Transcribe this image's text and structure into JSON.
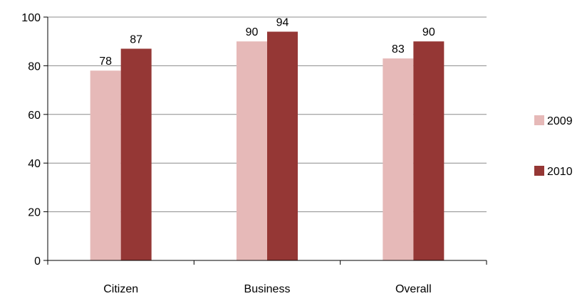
{
  "chart_data": {
    "type": "bar",
    "title": "",
    "xlabel": "",
    "ylabel": "",
    "categories": [
      "Citizen",
      "Business",
      "Overall"
    ],
    "series": [
      {
        "name": "2009",
        "values": [
          78,
          90,
          83
        ],
        "color": "#E6B9B8"
      },
      {
        "name": "2010",
        "values": [
          87,
          94,
          90
        ],
        "color": "#953735"
      }
    ],
    "ylim": [
      0,
      100
    ],
    "yticks": [
      0,
      20,
      40,
      60,
      80,
      100
    ],
    "grid": true,
    "legend": "right",
    "data_labels": true
  }
}
